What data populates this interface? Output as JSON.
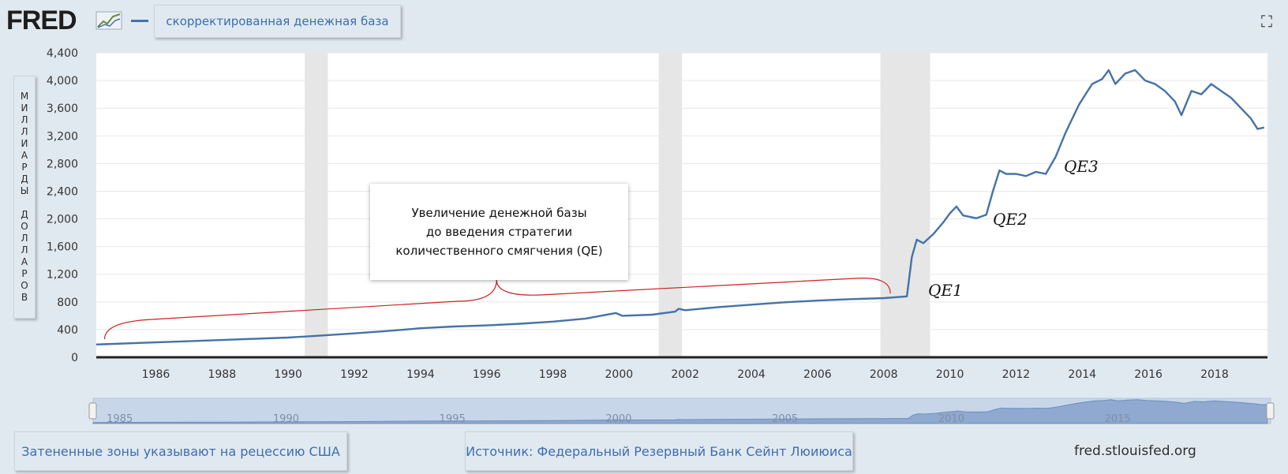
{
  "header": {
    "logo_text": "FRED",
    "logo_icon": "line-chart-logo-icon",
    "series_label": "скорректированная денежная база",
    "expand_icon": "fullscreen-icon"
  },
  "y_axis_label": "МИЛЛИАРДЫ ДОЛЛАРОВ",
  "annotation": {
    "text": "Увеличение денежной базы\nдо введения стратегии\nколичественного смягчения (QE)"
  },
  "qe_labels": [
    "QE1",
    "QE2",
    "QE3"
  ],
  "footer": {
    "recession_note": "Затененные зоны указывают на рецессию США",
    "source_note": "Источник: Федеральный Резервный Банк Сейнт Люиюиса",
    "site": "fred.stlouisfed.org"
  },
  "colors": {
    "line": "#4572a7",
    "recession": "#e6e6e6",
    "background": "#e1e9f0",
    "navigator_fill": "#afc3e2",
    "brace": "#cc2222"
  },
  "chart_data": {
    "type": "line",
    "title": "",
    "xlabel": "",
    "ylabel": "МИЛЛИАРДЫ ДОЛЛАРОВ",
    "xlim": [
      1984.2,
      2019.6
    ],
    "ylim": [
      0,
      4400
    ],
    "y_ticks": [
      0,
      400,
      800,
      1200,
      1600,
      2000,
      2400,
      2800,
      3200,
      3600,
      4000,
      4400
    ],
    "y_tick_labels": [
      "0",
      "400",
      "800",
      "1,200",
      "1,600",
      "2,000",
      "2,400",
      "2,800",
      "3,200",
      "3,600",
      "4,000",
      "4,400"
    ],
    "x_ticks": [
      1986,
      1988,
      1990,
      1992,
      1994,
      1996,
      1998,
      2000,
      2002,
      2004,
      2006,
      2008,
      2010,
      2012,
      2014,
      2016,
      2018
    ],
    "navigator_ticks": [
      1985,
      1990,
      1995,
      2000,
      2005,
      2010,
      2015
    ],
    "grid": true,
    "legend": "top-left",
    "recessions": [
      [
        1990.5,
        1991.2
      ],
      [
        2001.2,
        2001.9
      ],
      [
        2007.9,
        2009.4
      ]
    ],
    "series": [
      {
        "name": "скорректированная денежная база",
        "points": [
          [
            1984.2,
            185
          ],
          [
            1986,
            215
          ],
          [
            1988,
            250
          ],
          [
            1990,
            285
          ],
          [
            1991,
            315
          ],
          [
            1992,
            345
          ],
          [
            1993,
            380
          ],
          [
            1994,
            420
          ],
          [
            1995,
            445
          ],
          [
            1996,
            460
          ],
          [
            1997,
            485
          ],
          [
            1998,
            515
          ],
          [
            1999,
            560
          ],
          [
            1999.9,
            640
          ],
          [
            2000.1,
            600
          ],
          [
            2001,
            615
          ],
          [
            2001.7,
            660
          ],
          [
            2001.8,
            700
          ],
          [
            2002,
            680
          ],
          [
            2003,
            725
          ],
          [
            2004,
            760
          ],
          [
            2005,
            795
          ],
          [
            2006,
            820
          ],
          [
            2007,
            840
          ],
          [
            2008,
            855
          ],
          [
            2008.7,
            880
          ],
          [
            2008.85,
            1450
          ],
          [
            2009,
            1700
          ],
          [
            2009.2,
            1650
          ],
          [
            2009.5,
            1780
          ],
          [
            2009.8,
            1950
          ],
          [
            2010.0,
            2080
          ],
          [
            2010.2,
            2180
          ],
          [
            2010.4,
            2050
          ],
          [
            2010.8,
            2010
          ],
          [
            2011.1,
            2060
          ],
          [
            2011.3,
            2400
          ],
          [
            2011.5,
            2700
          ],
          [
            2011.7,
            2650
          ],
          [
            2012.0,
            2650
          ],
          [
            2012.3,
            2620
          ],
          [
            2012.6,
            2680
          ],
          [
            2012.9,
            2650
          ],
          [
            2013.2,
            2900
          ],
          [
            2013.5,
            3250
          ],
          [
            2013.9,
            3650
          ],
          [
            2014.3,
            3950
          ],
          [
            2014.6,
            4020
          ],
          [
            2014.8,
            4150
          ],
          [
            2015.0,
            3950
          ],
          [
            2015.3,
            4100
          ],
          [
            2015.6,
            4150
          ],
          [
            2015.9,
            4000
          ],
          [
            2016.2,
            3950
          ],
          [
            2016.5,
            3850
          ],
          [
            2016.8,
            3700
          ],
          [
            2017.0,
            3500
          ],
          [
            2017.3,
            3850
          ],
          [
            2017.6,
            3800
          ],
          [
            2017.9,
            3950
          ],
          [
            2018.2,
            3850
          ],
          [
            2018.5,
            3750
          ],
          [
            2018.8,
            3600
          ],
          [
            2019.1,
            3450
          ],
          [
            2019.3,
            3300
          ],
          [
            2019.5,
            3320
          ]
        ]
      }
    ]
  }
}
